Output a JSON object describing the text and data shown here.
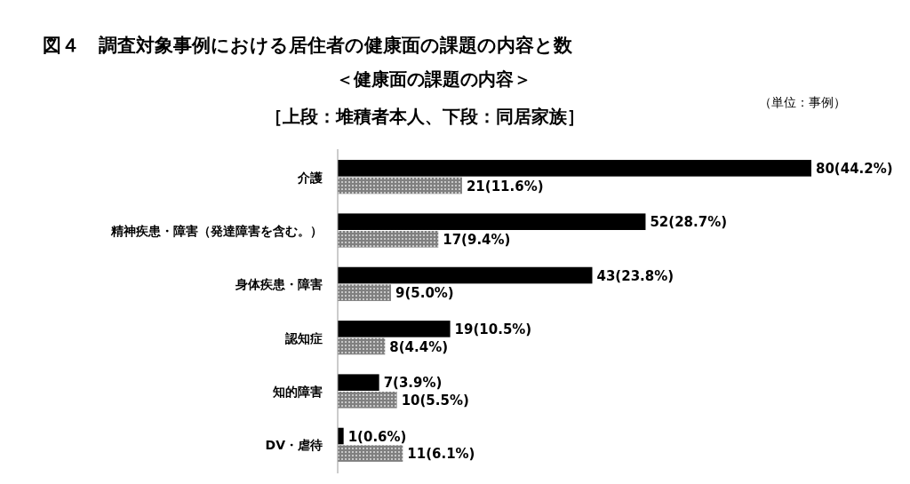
{
  "chart_data": {
    "type": "bar",
    "orientation": "horizontal",
    "title": "図４　調査対象事例における居住者の健康面の課題の内容と数",
    "subtitle": "＜健康面の課題の内容＞",
    "annotations": [
      "［上段：堆積者本人、下段：同居家族］",
      "（単位：事例）"
    ],
    "categories": [
      "介護",
      "精神疾患・障害（発達障害を含む。）",
      "身体疾患・障害",
      "認知症",
      "知的障害",
      "DV・虐待"
    ],
    "series": [
      {
        "color": "#000000",
        "values": [
          80,
          52,
          43,
          19,
          7,
          1
        ],
        "value_labels": [
          "80(44.2%)",
          "52(28.7%)",
          "43(23.8%)",
          "19(10.5%)",
          "7(3.9%)",
          "1(0.6%)"
        ]
      },
      {
        "color": "#808080",
        "values": [
          21,
          17,
          9,
          8,
          10,
          11
        ],
        "value_labels": [
          "21(11.6%)",
          "17(9.4%)",
          "9(5.0%)",
          "8(4.4%)",
          "10(5.5%)",
          "11(6.1%)"
        ]
      }
    ]
  }
}
